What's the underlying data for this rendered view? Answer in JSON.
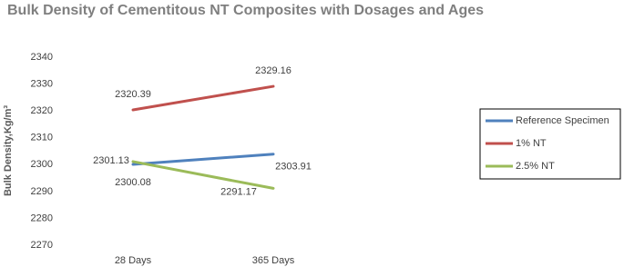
{
  "chart_data": {
    "type": "line",
    "title": "Bulk Density of Cementitous NT Composites with Dosages and Ages",
    "y_label": "Bulk Density,Kg/m³",
    "categories": [
      "28 Days",
      "365 Days"
    ],
    "series": [
      {
        "name": "Reference Specimen",
        "color": "#4f81bd",
        "values": [
          2300.08,
          2303.91
        ]
      },
      {
        "name": "1% NT",
        "color": "#c0504d",
        "values": [
          2320.39,
          2329.16
        ]
      },
      {
        "name": "2.5% NT",
        "color": "#9bbb59",
        "values": [
          2301.13,
          2291.17
        ]
      }
    ],
    "ylim": [
      2270,
      2340
    ],
    "yticks": [
      2270,
      2280,
      2290,
      2300,
      2310,
      2320,
      2330,
      2340
    ],
    "grid": false,
    "legend": "right"
  }
}
